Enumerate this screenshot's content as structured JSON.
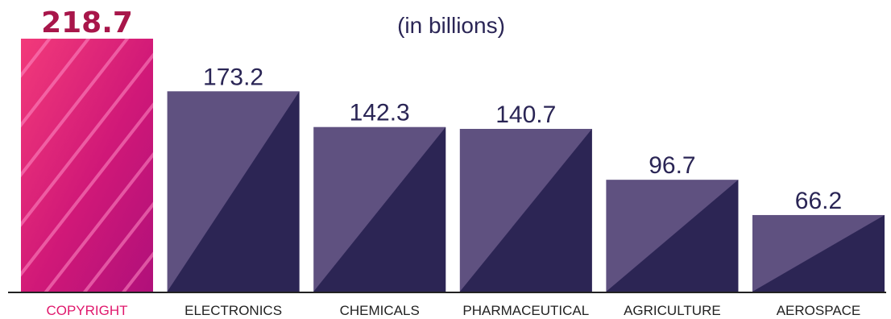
{
  "chart_data": {
    "type": "bar",
    "subtitle": "(in billions)",
    "categories": [
      "COPYRIGHT",
      "ELECTRONICS",
      "CHEMICALS",
      "PHARMACEUTICAL",
      "AGRICULTURE",
      "AEROSPACE"
    ],
    "values": [
      218.7,
      173.2,
      142.3,
      140.7,
      96.7,
      66.2
    ],
    "value_labels": [
      "218.7",
      "173.2",
      "142.3",
      "140.7",
      "96.7",
      "66.2"
    ],
    "highlight_index": 0,
    "ylim": [
      0,
      230
    ],
    "grid": false,
    "legend": "none",
    "colors": {
      "highlight": "#e0186c",
      "highlight_label": "#a8164a",
      "bar_light": "#5f5180",
      "bar_dark": "#2c2554",
      "axis": "#222222",
      "value_text": "#2a2555"
    }
  }
}
